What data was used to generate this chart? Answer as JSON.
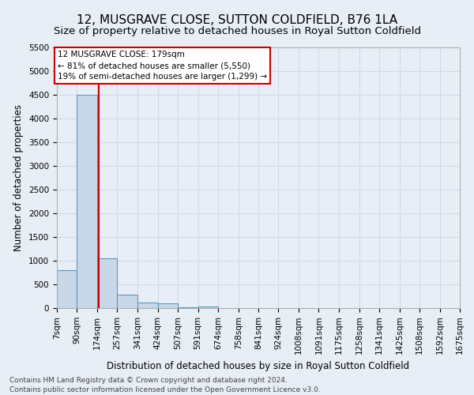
{
  "title": "12, MUSGRAVE CLOSE, SUTTON COLDFIELD, B76 1LA",
  "subtitle": "Size of property relative to detached houses in Royal Sutton Coldfield",
  "xlabel": "Distribution of detached houses by size in Royal Sutton Coldfield",
  "ylabel": "Number of detached properties",
  "footer_line1": "Contains HM Land Registry data © Crown copyright and database right 2024.",
  "footer_line2": "Contains public sector information licensed under the Open Government Licence v3.0.",
  "bin_edges": [
    7,
    90,
    174,
    257,
    341,
    424,
    507,
    591,
    674,
    758,
    841,
    924,
    1008,
    1091,
    1175,
    1258,
    1341,
    1425,
    1508,
    1592,
    1675
  ],
  "bin_counts": [
    800,
    4500,
    1050,
    290,
    120,
    105,
    20,
    40,
    0,
    0,
    0,
    0,
    0,
    0,
    0,
    0,
    0,
    0,
    0,
    0
  ],
  "bar_color": "#c8d8e8",
  "bar_edge_color": "#5a9abf",
  "bar_linewidth": 0.8,
  "vline_color": "#cc0000",
  "vline_x": 179,
  "annotation_box_color": "#cc0000",
  "annotation_line1": "12 MUSGRAVE CLOSE: 179sqm",
  "annotation_line2": "← 81% of detached houses are smaller (5,550)",
  "annotation_line3": "19% of semi-detached houses are larger (1,299) →",
  "grid_color": "#d0d8e8",
  "background_color": "#e8eef5",
  "ylim": [
    0,
    5500
  ],
  "yticks": [
    0,
    500,
    1000,
    1500,
    2000,
    2500,
    3000,
    3500,
    4000,
    4500,
    5000,
    5500
  ],
  "title_fontsize": 11,
  "subtitle_fontsize": 9.5,
  "axis_label_fontsize": 8.5,
  "tick_fontsize": 7.5,
  "annotation_fontsize": 7.5,
  "footer_fontsize": 6.5
}
